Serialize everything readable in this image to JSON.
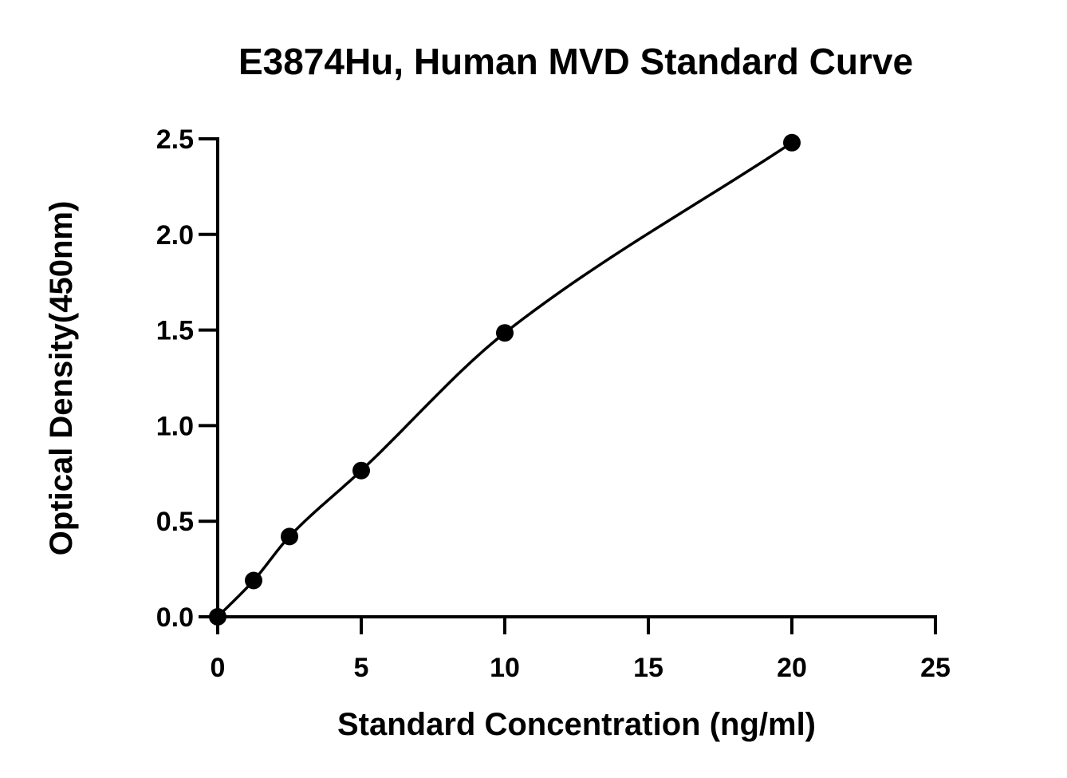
{
  "chart_data": {
    "type": "scatter",
    "title": "E3874Hu, Human MVD Standard Curve",
    "xlabel": "Standard Concentration (ng/ml)",
    "ylabel": "Optical Density(450nm)",
    "xlim": [
      0,
      25
    ],
    "ylim": [
      0,
      2.5
    ],
    "x_ticks": [
      0,
      5,
      10,
      15,
      20,
      25
    ],
    "x_tick_labels": [
      "0",
      "5",
      "10",
      "15",
      "20",
      "25"
    ],
    "y_ticks": [
      0,
      0.5,
      1.0,
      1.5,
      2.0,
      2.5
    ],
    "y_tick_labels": [
      "0.0",
      "0.5",
      "1.0",
      "1.5",
      "2.0",
      "2.5"
    ],
    "grid": false,
    "series": [
      {
        "x": [
          0,
          1.25,
          2.5,
          5,
          10,
          20
        ],
        "y": [
          0.0,
          0.19,
          0.42,
          0.765,
          1.485,
          2.48
        ],
        "color": "#000000",
        "marker": "circle",
        "fit_line": "smooth curve"
      }
    ]
  }
}
